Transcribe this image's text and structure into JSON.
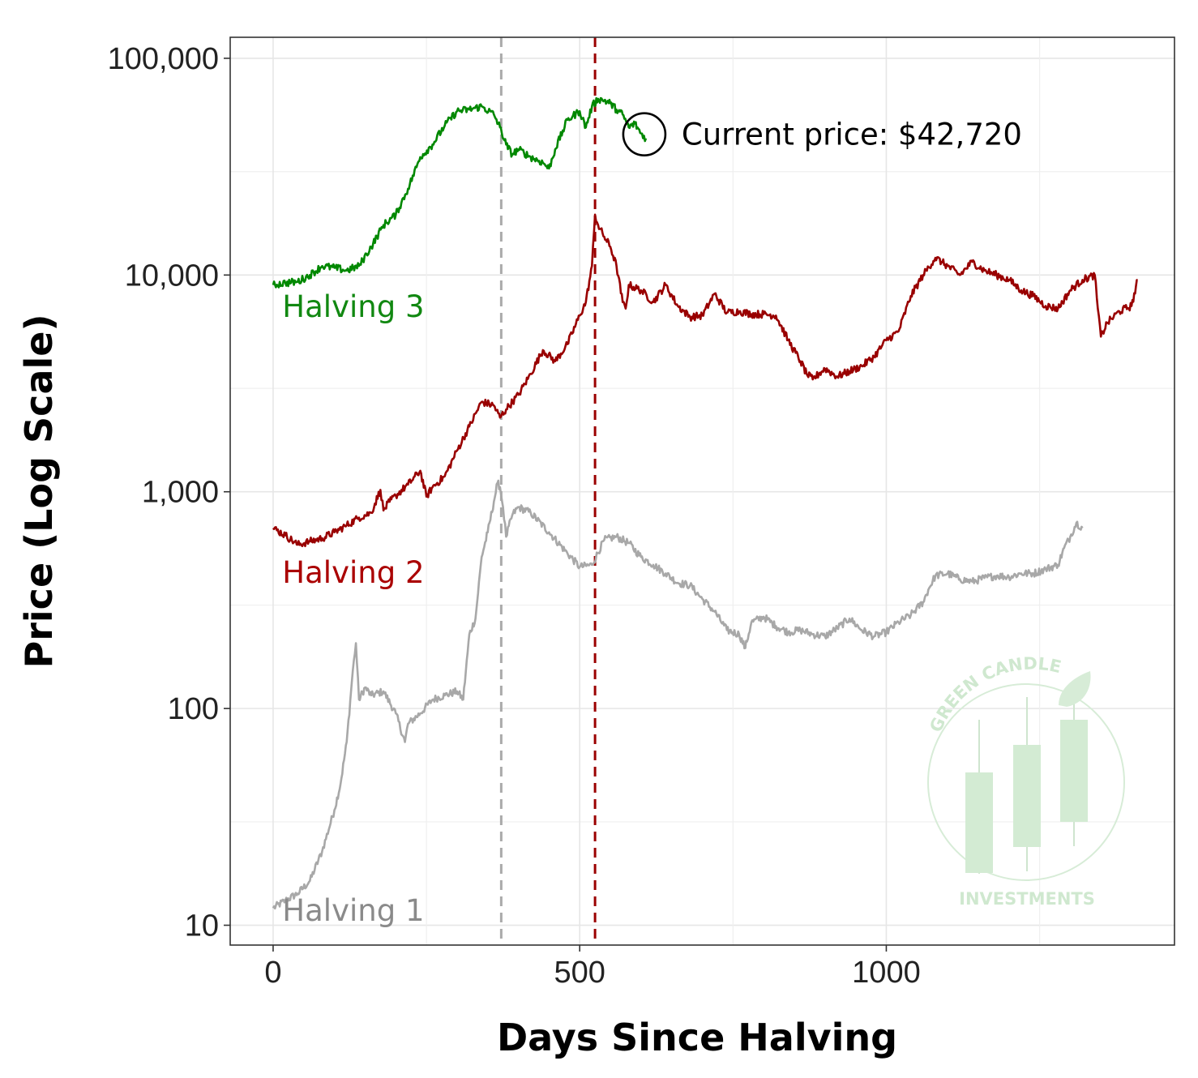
{
  "chart_data": {
    "type": "line",
    "xlabel": "Days Since Halving",
    "ylabel": "Price (Log Scale)",
    "xlim": [
      -70,
      1470
    ],
    "ylim": [
      8.1,
      125000
    ],
    "y_scale": "log",
    "grid": true,
    "x_ticks": [
      {
        "value": 0,
        "label": "0"
      },
      {
        "value": 500,
        "label": "500"
      },
      {
        "value": 1000,
        "label": "1000"
      }
    ],
    "y_ticks": [
      {
        "value": 10,
        "label": "10"
      },
      {
        "value": 100,
        "label": "100"
      },
      {
        "value": 1000,
        "label": "1,000"
      },
      {
        "value": 10000,
        "label": "10,000"
      },
      {
        "value": 100000,
        "label": "100,000"
      }
    ],
    "vertical_lines": [
      {
        "x": 372,
        "color": "#aaaaaa",
        "style": "dashed"
      },
      {
        "x": 525,
        "color": "#9b0000",
        "style": "dashed"
      }
    ],
    "series": [
      {
        "name": "Halving 1",
        "color": "#a8a8a8",
        "label_color": "#8a8a8a",
        "label_x": 15,
        "label_y": 10.5,
        "x": [
          0,
          20,
          40,
          60,
          80,
          100,
          110,
          120,
          130,
          135,
          140,
          150,
          160,
          180,
          200,
          215,
          220,
          240,
          260,
          280,
          300,
          310,
          320,
          330,
          340,
          350,
          360,
          366,
          370,
          375,
          380,
          390,
          400,
          420,
          450,
          480,
          500,
          520,
          540,
          560,
          580,
          600,
          620,
          640,
          660,
          680,
          700,
          720,
          740,
          760,
          770,
          780,
          800,
          820,
          840,
          860,
          880,
          900,
          920,
          940,
          960,
          980,
          1000,
          1020,
          1040,
          1060,
          1070,
          1080,
          1100,
          1120,
          1140,
          1160,
          1180,
          1200,
          1220,
          1240,
          1260,
          1280,
          1290,
          1300,
          1310,
          1320
        ],
        "y": [
          12,
          13,
          14,
          16,
          22,
          34,
          45,
          70,
          150,
          200,
          110,
          125,
          115,
          120,
          95,
          70,
          85,
          95,
          110,
          115,
          120,
          110,
          220,
          260,
          500,
          650,
          900,
          1100,
          1050,
          850,
          620,
          780,
          850,
          800,
          650,
          520,
          450,
          460,
          600,
          620,
          580,
          500,
          460,
          420,
          380,
          370,
          320,
          280,
          230,
          220,
          190,
          250,
          265,
          240,
          225,
          230,
          220,
          215,
          235,
          260,
          230,
          215,
          225,
          250,
          270,
          310,
          360,
          410,
          420,
          395,
          385,
          400,
          410,
          405,
          420,
          420,
          440,
          460,
          550,
          620,
          720,
          680
        ]
      },
      {
        "name": "Halving 2",
        "color": "#990000",
        "label_color": "#aa0000",
        "label_x": 15,
        "label_y": 380,
        "x": [
          0,
          20,
          40,
          60,
          80,
          100,
          120,
          140,
          160,
          175,
          180,
          190,
          200,
          220,
          240,
          250,
          260,
          280,
          300,
          320,
          340,
          360,
          370,
          380,
          400,
          420,
          440,
          460,
          480,
          500,
          510,
          520,
          525,
          530,
          540,
          550,
          560,
          570,
          575,
          580,
          600,
          620,
          640,
          660,
          680,
          700,
          720,
          740,
          760,
          780,
          800,
          820,
          840,
          860,
          870,
          880,
          890,
          900,
          920,
          940,
          960,
          980,
          1000,
          1020,
          1040,
          1060,
          1080,
          1090,
          1100,
          1120,
          1140,
          1160,
          1180,
          1200,
          1220,
          1240,
          1260,
          1280,
          1300,
          1320,
          1340,
          1345,
          1350,
          1360,
          1380,
          1400,
          1410
        ],
        "y": [
          680,
          630,
          570,
          590,
          610,
          650,
          700,
          760,
          800,
          1020,
          820,
          900,
          960,
          1080,
          1250,
          950,
          1050,
          1180,
          1550,
          2000,
          2600,
          2500,
          2200,
          2400,
          2800,
          3500,
          4500,
          4000,
          4800,
          6500,
          7500,
          11000,
          19000,
          17000,
          15000,
          13500,
          11000,
          7500,
          7000,
          9000,
          8500,
          7500,
          9000,
          7200,
          6400,
          6500,
          8200,
          6700,
          6800,
          6600,
          6600,
          6500,
          5000,
          4000,
          3500,
          3300,
          3500,
          3700,
          3400,
          3600,
          3800,
          4200,
          5000,
          5500,
          8000,
          10000,
          12000,
          11500,
          11000,
          10000,
          11500,
          10500,
          10000,
          9500,
          8500,
          8000,
          7200,
          7000,
          8500,
          9500,
          10000,
          7000,
          5200,
          6000,
          6800,
          7200,
          9500
        ]
      },
      {
        "name": "Halving 3",
        "color": "#008800",
        "label_color": "#118811",
        "label_x": 15,
        "label_y": 6400,
        "x": [
          0,
          20,
          40,
          60,
          80,
          100,
          120,
          140,
          160,
          180,
          200,
          220,
          240,
          260,
          280,
          300,
          320,
          340,
          360,
          370,
          380,
          390,
          400,
          420,
          440,
          450,
          460,
          480,
          500,
          510,
          520,
          530,
          540,
          550,
          560,
          570,
          580,
          590,
          600,
          608
        ],
        "y": [
          9000,
          9200,
          9300,
          10000,
          11000,
          10800,
          10500,
          11000,
          13500,
          17000,
          19000,
          25000,
          35000,
          40000,
          49000,
          57000,
          58000,
          60000,
          55000,
          48000,
          40000,
          36000,
          38000,
          35000,
          33000,
          31000,
          38000,
          52000,
          57000,
          48000,
          60000,
          65000,
          64000,
          62000,
          58000,
          55000,
          48000,
          50000,
          45000,
          42720
        ]
      }
    ],
    "annotations": [
      {
        "text": "Current price: $42,720",
        "x": 608,
        "y": 42720
      }
    ]
  },
  "logo": {
    "top_text": "GREEN CANDLE",
    "bottom_text": "INVESTMENTS"
  }
}
